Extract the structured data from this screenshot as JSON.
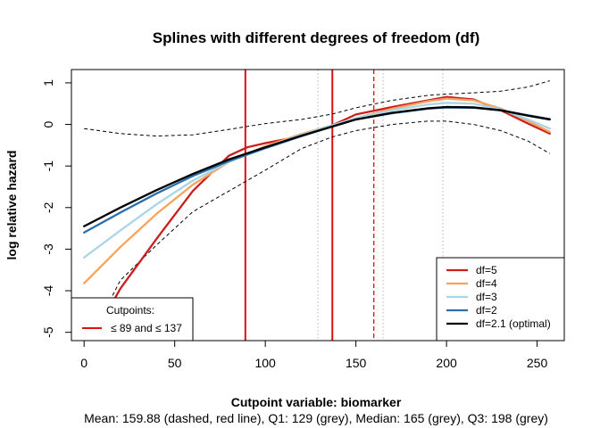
{
  "chart_data": {
    "type": "line",
    "title": "Splines with different degrees of freedom (df)",
    "xlabel": "Cutpoint variable:  biomarker",
    "ylabel": "log relative hazard",
    "subtitle": "Mean: 159.88 (dashed, red line),  Q1: 129 (grey),  Median: 165 (grey),  Q3: 198 (grey)",
    "xlim": [
      -7,
      265
    ],
    "ylim": [
      -5.2,
      1.32
    ],
    "xticks": [
      0,
      50,
      100,
      150,
      200,
      250
    ],
    "yticks": [
      -5,
      -4,
      -3,
      -2,
      -1,
      0,
      1
    ],
    "grid": false,
    "colors": {
      "df5": "#cb1e1e",
      "df4": "#f6a35c",
      "df3": "#a9d5e8",
      "df2": "#2a6fab",
      "df21": "#000000",
      "cutpoint": "#e01010",
      "mean": "#e01010",
      "quantile": "#b4b4b4",
      "ci": "#000000"
    },
    "series": [
      {
        "name": "df=5",
        "x": [
          0,
          20,
          40,
          60,
          80,
          90,
          100,
          120,
          137,
          150,
          170,
          190,
          200,
          215,
          230,
          245,
          257
        ],
        "y": [
          -5.5,
          -3.95,
          -2.75,
          -1.6,
          -0.75,
          -0.55,
          -0.45,
          -0.28,
          -0.02,
          0.24,
          0.42,
          0.58,
          0.66,
          0.6,
          0.34,
          0.02,
          -0.22
        ]
      },
      {
        "name": "df=4",
        "x": [
          0,
          20,
          40,
          60,
          80,
          100,
          120,
          137,
          150,
          170,
          190,
          200,
          215,
          230,
          245,
          257
        ],
        "y": [
          -3.82,
          -2.95,
          -2.15,
          -1.45,
          -0.9,
          -0.52,
          -0.23,
          -0.02,
          0.15,
          0.38,
          0.56,
          0.62,
          0.58,
          0.38,
          0.08,
          -0.18
        ]
      },
      {
        "name": "df=3",
        "x": [
          0,
          20,
          40,
          60,
          80,
          100,
          120,
          137,
          150,
          170,
          190,
          200,
          215,
          230,
          245,
          257
        ],
        "y": [
          -3.2,
          -2.55,
          -1.92,
          -1.35,
          -0.9,
          -0.55,
          -0.25,
          -0.02,
          0.15,
          0.34,
          0.48,
          0.52,
          0.5,
          0.36,
          0.12,
          -0.1
        ]
      },
      {
        "name": "df=2",
        "x": [
          0,
          20,
          40,
          60,
          80,
          100,
          120,
          137,
          150,
          170,
          190,
          200,
          215,
          230,
          245,
          257
        ],
        "y": [
          -2.6,
          -2.12,
          -1.66,
          -1.24,
          -0.88,
          -0.57,
          -0.28,
          -0.05,
          0.12,
          0.27,
          0.38,
          0.41,
          0.4,
          0.34,
          0.22,
          0.13
        ]
      },
      {
        "name": "df=2.1 (optimal)",
        "x": [
          0,
          20,
          40,
          60,
          80,
          100,
          120,
          137,
          150,
          170,
          190,
          200,
          215,
          230,
          245,
          257
        ],
        "y": [
          -2.45,
          -2.0,
          -1.58,
          -1.19,
          -0.84,
          -0.55,
          -0.27,
          -0.05,
          0.12,
          0.28,
          0.39,
          0.42,
          0.41,
          0.34,
          0.21,
          0.12
        ]
      }
    ],
    "confidence_band": {
      "x": [
        0,
        20,
        40,
        60,
        80,
        100,
        120,
        137,
        150,
        170,
        190,
        200,
        215,
        230,
        245,
        257
      ],
      "upper": [
        -0.1,
        -0.22,
        -0.28,
        -0.25,
        -0.12,
        0.02,
        0.12,
        0.25,
        0.4,
        0.58,
        0.7,
        0.73,
        0.76,
        0.8,
        0.9,
        1.05
      ],
      "lower": [
        -5.45,
        -3.75,
        -2.9,
        -2.1,
        -1.6,
        -1.1,
        -0.58,
        -0.3,
        -0.15,
        0.0,
        0.08,
        0.08,
        0.0,
        -0.15,
        -0.4,
        -0.7
      ]
    },
    "cutpoints": [
      89,
      137
    ],
    "mean_line": 159.88,
    "quantile_lines": [
      129,
      165,
      198
    ],
    "legend": {
      "position": "bottom-right",
      "entries": [
        "df=5",
        "df=4",
        "df=3",
        "df=2",
        "df=2.1 (optimal)"
      ]
    },
    "cutpoint_legend": {
      "position": "bottom-left",
      "title": "Cutpoints:",
      "entry": "≤ 89 and ≤ 137"
    }
  }
}
